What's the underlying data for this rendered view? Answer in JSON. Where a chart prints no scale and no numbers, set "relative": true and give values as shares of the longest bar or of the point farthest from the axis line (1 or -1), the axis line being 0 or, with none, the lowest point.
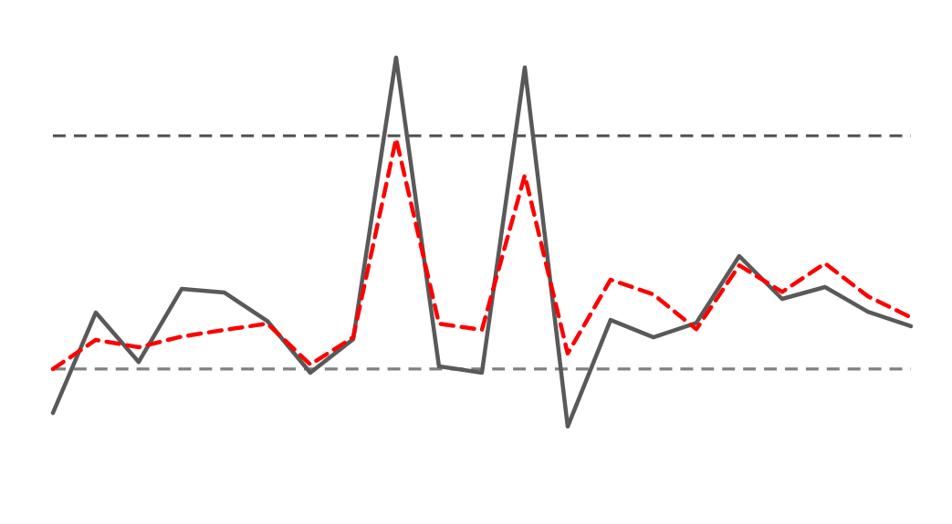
{
  "chart_data": {
    "type": "line",
    "relative": true,
    "categories": [
      null,
      null,
      null,
      null,
      null,
      null,
      null,
      null,
      null,
      null,
      null,
      null,
      null,
      null,
      null,
      null,
      null,
      null,
      null,
      null,
      null
    ],
    "series": [
      {
        "color": "#595959",
        "line_style": "solid",
        "values": [
          0.037,
          0.309,
          0.175,
          0.373,
          0.363,
          0.286,
          0.146,
          0.237,
          1.0,
          0.163,
          0.146,
          0.973,
          0.0,
          0.289,
          0.242,
          0.281,
          0.462,
          0.346,
          0.378,
          0.311,
          0.272
        ]
      },
      {
        "color": "#ff0000",
        "line_style": "dashed",
        "values": [
          0.156,
          0.235,
          0.215,
          0.244,
          0.262,
          0.279,
          0.168,
          0.242,
          0.78,
          0.279,
          0.262,
          0.681,
          0.198,
          0.398,
          0.358,
          0.264,
          0.437,
          0.365,
          0.442,
          0.353,
          0.296
        ]
      }
    ],
    "ref_lines": [
      {
        "axis": "y",
        "value": 0.788,
        "color": "#4d4d4d",
        "line_style": "dashed"
      },
      {
        "axis": "y",
        "value": 0.156,
        "color": "#808080",
        "line_style": "dashed"
      }
    ],
    "marker": "none"
  }
}
